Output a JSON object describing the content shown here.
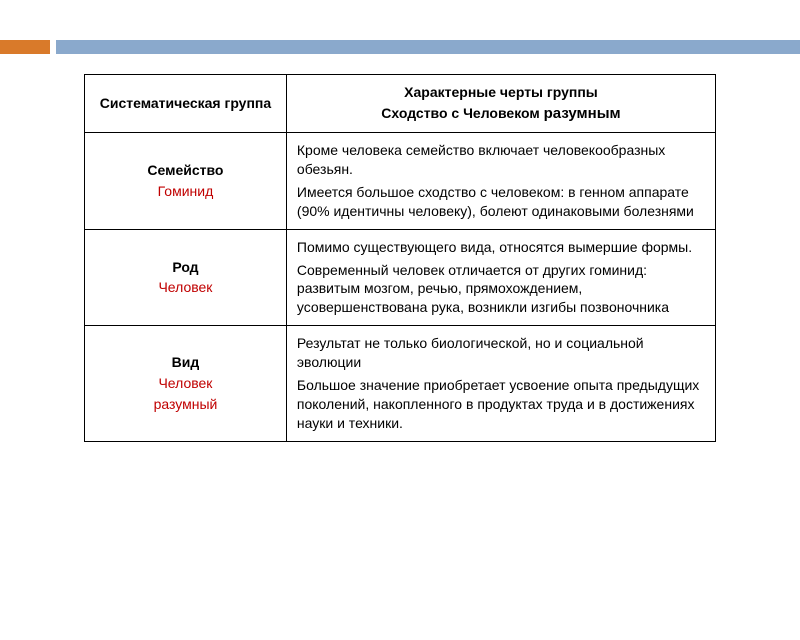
{
  "colors": {
    "accent_orange": "#d97a2a",
    "accent_blue": "#8aa9cc",
    "text": "#000000",
    "red": "#c00000",
    "border": "#000000",
    "background": "#ffffff"
  },
  "header": {
    "left_title": "Систематическая группа",
    "right_line1": "Характерные черты группы",
    "right_line2_prefix": "Сходство с Человеком ",
    "right_line2_emph": "разумным"
  },
  "rows": [
    {
      "name_bold": "Семейство",
      "name_red": "Гоминид",
      "desc1": "Кроме человека семейство включает человекообразных обезьян.",
      "desc2": "Имеется  большое сходство с человеком: в генном аппарате (90% идентичны человеку), болеют одинаковыми болезнями"
    },
    {
      "name_bold": "Род",
      "name_red": "Человек",
      "desc1": "Помимо существующего вида, относятся вымершие формы.",
      "desc2": "Современный человек отличается от других гоминид: развитым мозгом, речью, прямохождением, усовершенствована рука, возникли изгибы позвоночника"
    },
    {
      "name_bold": "Вид",
      "name_red_a": "Человек",
      "name_red_b": "разумный",
      "desc1": "Результат не только биологической, но и социальной эволюции",
      "desc2": "Большое значение приобретает усвоение опыта предыдущих поколений, накопленного в продуктах труда и в достижениях науки и техники."
    }
  ]
}
